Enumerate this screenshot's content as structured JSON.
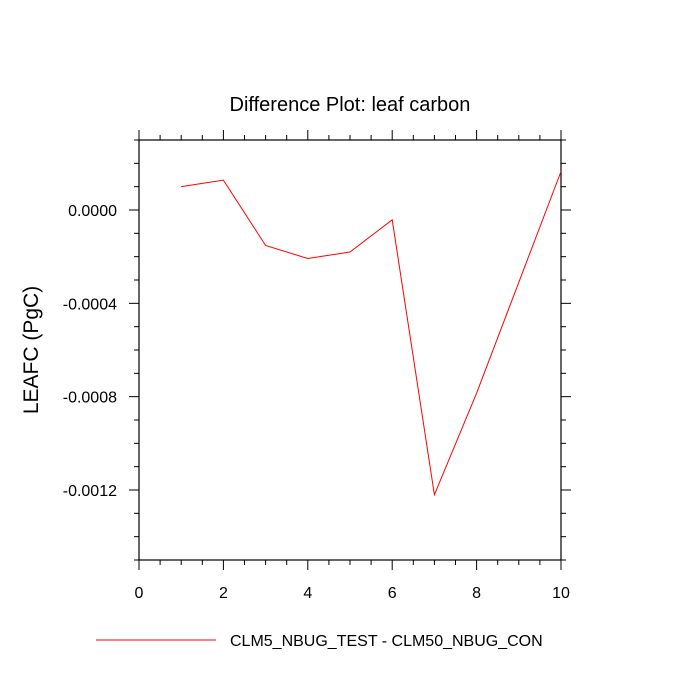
{
  "chart_data": {
    "type": "line",
    "title": "Difference Plot: leaf carbon",
    "xlabel": "",
    "ylabel": "LEAFC  (PgC)",
    "xlim": [
      0,
      10
    ],
    "ylim": [
      -0.0015,
      0.0003
    ],
    "x_ticks": [
      0,
      2,
      4,
      6,
      8,
      10
    ],
    "x_tick_labels": [
      "0",
      "2",
      "4",
      "6",
      "8",
      "10"
    ],
    "y_ticks": [
      0.0,
      -0.0004,
      -0.0008,
      -0.0012
    ],
    "y_tick_labels": [
      "0.0000",
      "-0.0004",
      "-0.0008",
      "-0.0012"
    ],
    "grid": false,
    "legend_position": "bottom",
    "series": [
      {
        "name": "CLM5_NBUG_TEST - CLM50_NBUG_CON",
        "color": "#ff0000",
        "x": [
          1,
          2,
          3,
          4,
          5,
          6,
          7,
          8,
          9,
          10
        ],
        "y": [
          0.0001,
          0.000128,
          -0.000152,
          -0.000208,
          -0.00018,
          -4.2e-05,
          -0.00122,
          -0.000785,
          -0.00031,
          0.000165
        ]
      }
    ]
  }
}
